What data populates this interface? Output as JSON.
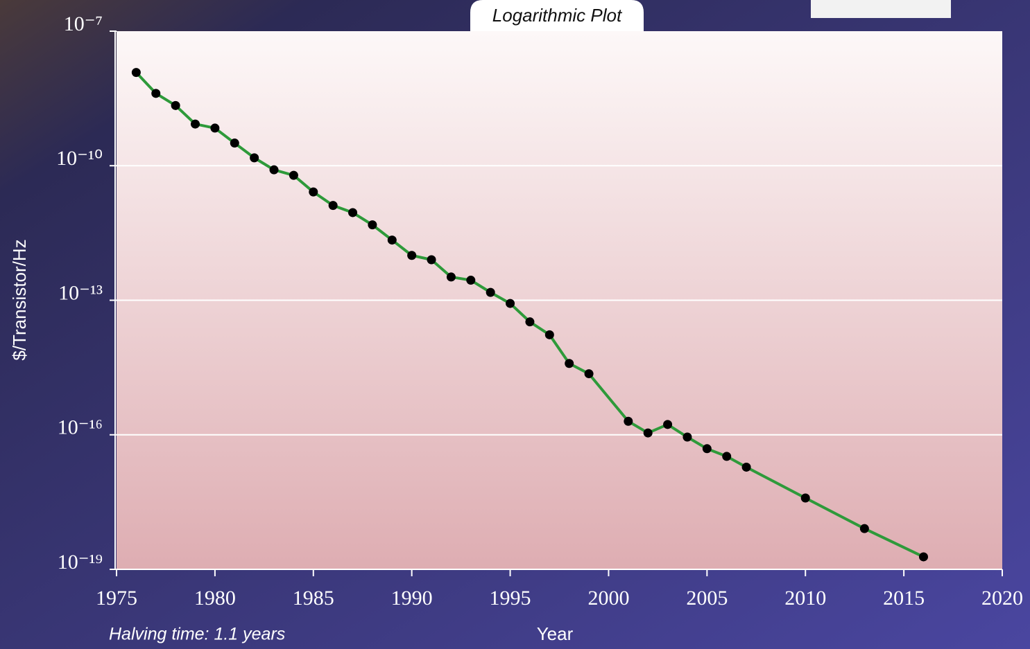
{
  "chart_data": {
    "type": "line",
    "title": "Logarithmic Plot",
    "xlabel": "Year",
    "ylabel": "$/Transistor/Hz",
    "annotation": "Halving time: 1.1 years",
    "x": [
      1976,
      1977,
      1978,
      1979,
      1980,
      1981,
      1982,
      1983,
      1984,
      1985,
      1986,
      1987,
      1988,
      1989,
      1990,
      1991,
      1992,
      1993,
      1994,
      1995,
      1996,
      1997,
      1998,
      1999,
      2001,
      2002,
      2003,
      2004,
      2005,
      2006,
      2007,
      2010,
      2013,
      2016
    ],
    "values": [
      1.2e-08,
      4.1e-09,
      2.2e-09,
      8.5e-10,
      6.9e-10,
      3.2e-10,
      1.5e-10,
      8.1e-11,
      6.1e-11,
      2.6e-11,
      1.3e-11,
      9e-12,
      4.8e-12,
      2.2e-12,
      1e-12,
      8e-13,
      3.3e-13,
      2.8e-13,
      1.5e-13,
      8.5e-14,
      3.3e-14,
      1.7e-14,
      3.9e-15,
      2.3e-15,
      2e-16,
      1.1e-16,
      1.7e-16,
      8.9e-17,
      4.9e-17,
      3.3e-17,
      1.9e-17,
      3.9e-18,
      8.1e-19,
      1.9e-19
    ],
    "color": "#2e9a3a",
    "marker_color": "#000000",
    "xlim": [
      1975,
      2020
    ],
    "xticks": [
      1975,
      1980,
      1985,
      1990,
      1995,
      2000,
      2005,
      2010,
      2015,
      2020
    ],
    "ylim": [
      1e-19,
      1e-07
    ],
    "yticks": [
      {
        "value": 1e-19,
        "label": "10⁻¹⁹"
      },
      {
        "value": 1e-16,
        "label": "10⁻¹⁶"
      },
      {
        "value": 1e-13,
        "label": "10⁻¹³"
      },
      {
        "value": 1e-10,
        "label": "10⁻¹⁰"
      },
      {
        "value": 1e-07,
        "label": "10⁻⁷"
      }
    ],
    "log_y": true,
    "grid": true
  }
}
